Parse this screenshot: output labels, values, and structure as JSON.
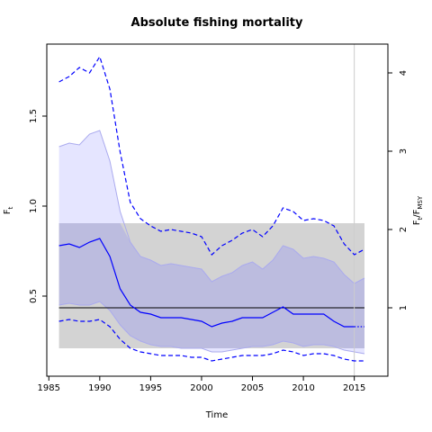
{
  "chart_data": {
    "type": "line",
    "title": "Absolute fishing mortality",
    "xlabel": "Time",
    "ylabel": "F",
    "ylabel_sub": "t",
    "ylabel_right": "F",
    "ylabel_right_sub": "t",
    "ylabel_right_den": "F",
    "ylabel_right_den_sub": "MSY",
    "xlim": [
      1984.8,
      2018.3
    ],
    "ylim": [
      0.055,
      1.9
    ],
    "x_ticks": [
      1985,
      1990,
      1995,
      2000,
      2005,
      2010,
      2015
    ],
    "y_ticks": [
      0.5,
      1.0,
      1.5
    ],
    "y_tick_labels": [
      "0.5",
      "1.0",
      "1.5"
    ],
    "right_ticks": [
      1,
      2,
      3,
      4
    ],
    "right_tick_labels": [
      "1",
      "2",
      "3",
      "4"
    ],
    "fmsy": 0.435,
    "msy_band": [
      0.21,
      0.905
    ],
    "vertical_line_x": 2015,
    "x": [
      1986,
      1987,
      1988,
      1989,
      1990,
      1991,
      1992,
      1993,
      1994,
      1995,
      1996,
      1997,
      1998,
      1999,
      2000,
      2001,
      2002,
      2003,
      2004,
      2005,
      2006,
      2007,
      2008,
      2009,
      2010,
      2011,
      2012,
      2013,
      2014,
      2015,
      2016
    ],
    "estimate": [
      0.78,
      0.79,
      0.77,
      0.8,
      0.82,
      0.72,
      0.54,
      0.45,
      0.41,
      0.4,
      0.38,
      0.38,
      0.38,
      0.37,
      0.36,
      0.33,
      0.35,
      0.36,
      0.38,
      0.38,
      0.38,
      0.41,
      0.44,
      0.4,
      0.4,
      0.4,
      0.4,
      0.36,
      0.33,
      0.33,
      0.33
    ],
    "ci_upper": [
      1.33,
      1.35,
      1.34,
      1.4,
      1.42,
      1.25,
      0.97,
      0.8,
      0.72,
      0.7,
      0.67,
      0.68,
      0.67,
      0.66,
      0.65,
      0.58,
      0.61,
      0.63,
      0.67,
      0.69,
      0.65,
      0.7,
      0.78,
      0.76,
      0.71,
      0.72,
      0.71,
      0.69,
      0.62,
      0.57,
      0.6
    ],
    "ci_lower": [
      0.45,
      0.46,
      0.45,
      0.45,
      0.47,
      0.42,
      0.34,
      0.28,
      0.25,
      0.23,
      0.22,
      0.22,
      0.21,
      0.21,
      0.21,
      0.19,
      0.19,
      0.2,
      0.21,
      0.22,
      0.22,
      0.23,
      0.25,
      0.24,
      0.22,
      0.23,
      0.23,
      0.22,
      0.2,
      0.19,
      0.18
    ],
    "pred_upper": [
      1.69,
      1.72,
      1.77,
      1.74,
      1.83,
      1.65,
      1.3,
      1.02,
      0.93,
      0.89,
      0.86,
      0.87,
      0.86,
      0.85,
      0.83,
      0.73,
      0.78,
      0.81,
      0.85,
      0.87,
      0.83,
      0.89,
      0.99,
      0.97,
      0.92,
      0.93,
      0.92,
      0.89,
      0.79,
      0.73,
      0.76
    ],
    "pred_lower": [
      0.36,
      0.37,
      0.36,
      0.36,
      0.37,
      0.33,
      0.26,
      0.21,
      0.19,
      0.18,
      0.17,
      0.17,
      0.17,
      0.16,
      0.16,
      0.14,
      0.15,
      0.16,
      0.17,
      0.17,
      0.17,
      0.18,
      0.2,
      0.19,
      0.17,
      0.18,
      0.18,
      0.17,
      0.15,
      0.14,
      0.14
    ],
    "colors": {
      "estimate": "#0000ff",
      "ci_fill": "#e5e5ff",
      "ci_edge": "#aaaaee",
      "msy_band": "#d3d3d3",
      "overlap": "#bcbcdf",
      "fmsy_line": "#000000",
      "vline": "#cccccc"
    },
    "grid": false,
    "legend": "none"
  }
}
